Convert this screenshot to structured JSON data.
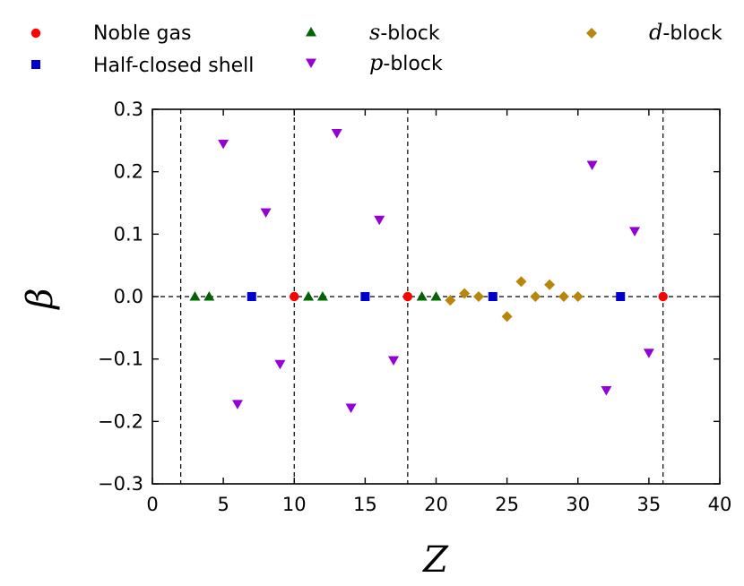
{
  "chart_data": {
    "type": "scatter",
    "xlabel": "Z",
    "ylabel": "β",
    "xlim": [
      0,
      40
    ],
    "ylim": [
      -0.3,
      0.3
    ],
    "x_ticks": [
      "0",
      "5",
      "10",
      "15",
      "20",
      "25",
      "30",
      "35",
      "40"
    ],
    "y_ticks": [
      "0.3",
      "0.2",
      "0.1",
      "0.0",
      "−0.1",
      "−0.2",
      "−0.3"
    ],
    "grid": false,
    "legend_placement": "top",
    "reference_lines": {
      "vertical_x": [
        2,
        10,
        18,
        36
      ],
      "horizontal_y": 0.0,
      "style": "dashed"
    },
    "series": [
      {
        "name": "Noble gas",
        "marker": "circle",
        "color": "#ff0000",
        "points": [
          [
            10,
            0.0
          ],
          [
            18,
            0.0
          ],
          [
            36,
            0.0
          ]
        ]
      },
      {
        "name": "Half-closed shell",
        "marker": "square",
        "color": "#0000cc",
        "points": [
          [
            7,
            0.0
          ],
          [
            15,
            0.0
          ],
          [
            24,
            0.0
          ],
          [
            33,
            0.0
          ]
        ]
      },
      {
        "name": "s-block",
        "name_italic": "s",
        "name_rest": "-block",
        "marker": "triangle-up",
        "color": "#006400",
        "points": [
          [
            3,
            0.0
          ],
          [
            4,
            0.0
          ],
          [
            11,
            0.0
          ],
          [
            12,
            0.0
          ],
          [
            19,
            0.0
          ],
          [
            20,
            0.0
          ]
        ]
      },
      {
        "name": "p-block",
        "name_italic": "p",
        "name_rest": "-block",
        "marker": "triangle-down",
        "color": "#9400d3",
        "points": [
          [
            5,
            0.245
          ],
          [
            6,
            -0.172
          ],
          [
            8,
            0.135
          ],
          [
            9,
            -0.108
          ],
          [
            13,
            0.262
          ],
          [
            14,
            -0.178
          ],
          [
            16,
            0.123
          ],
          [
            17,
            -0.102
          ],
          [
            31,
            0.211
          ],
          [
            32,
            -0.15
          ],
          [
            34,
            0.105
          ],
          [
            35,
            -0.09
          ]
        ]
      },
      {
        "name": "d-block",
        "name_italic": "d",
        "name_rest": "-block",
        "marker": "diamond",
        "color": "#b8860b",
        "points": [
          [
            21,
            -0.006
          ],
          [
            22,
            0.005
          ],
          [
            23,
            0.0
          ],
          [
            25,
            -0.032
          ],
          [
            26,
            0.024
          ],
          [
            27,
            0.0
          ],
          [
            28,
            0.019
          ],
          [
            29,
            0.0
          ],
          [
            30,
            0.0
          ]
        ]
      }
    ]
  }
}
